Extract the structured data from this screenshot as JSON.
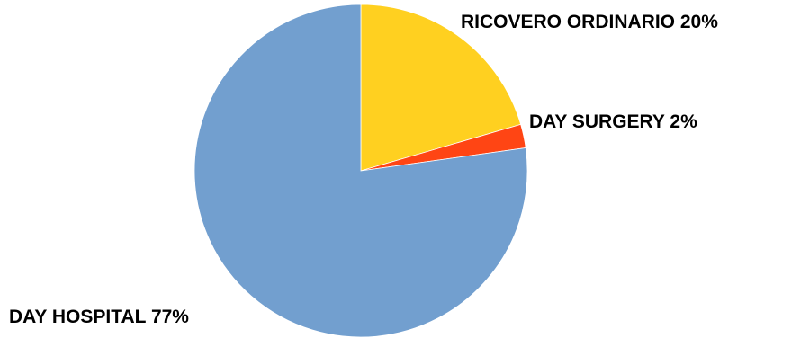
{
  "chart_data": {
    "type": "pie",
    "start_angle_deg": 0,
    "direction": "clockwise",
    "slices": [
      {
        "category": "RICOVERO ORDINARIO",
        "percent_label": "20%",
        "value": 20.5,
        "color": "#FFD020"
      },
      {
        "category": "DAY SURGERY",
        "percent_label": "2%",
        "value": 2.3,
        "color": "#FF4514"
      },
      {
        "category": "DAY HOSPITAL",
        "percent_label": "77%",
        "value": 77.2,
        "color": "#729FCF"
      }
    ]
  }
}
